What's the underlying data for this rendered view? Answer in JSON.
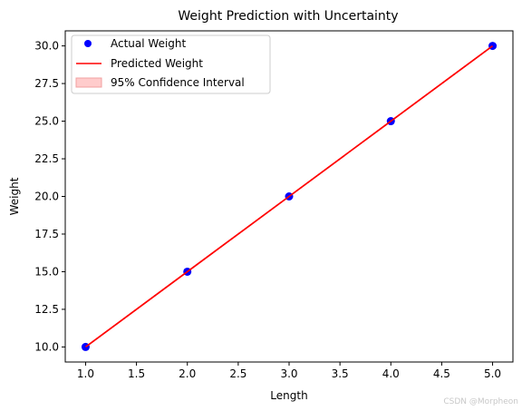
{
  "chart_data": {
    "type": "line",
    "title": "Weight Prediction with Uncertainty",
    "xlabel": "Length",
    "ylabel": "Weight",
    "xlim": [
      0.8,
      5.2
    ],
    "ylim": [
      9.0,
      31.0
    ],
    "xticks": [
      "1.0",
      "1.5",
      "2.0",
      "2.5",
      "3.0",
      "3.5",
      "4.0",
      "4.5",
      "5.0"
    ],
    "yticks": [
      "10.0",
      "12.5",
      "15.0",
      "17.5",
      "20.0",
      "22.5",
      "25.0",
      "27.5",
      "30.0"
    ],
    "grid": false,
    "legend_position": "top-left",
    "series": [
      {
        "name": "Actual Weight",
        "kind": "scatter",
        "color": "#0000ff",
        "x": [
          1,
          2,
          3,
          4,
          5
        ],
        "y": [
          10,
          15,
          20,
          25,
          30
        ]
      },
      {
        "name": "Predicted Weight",
        "kind": "line",
        "color": "#ff0000",
        "x": [
          1,
          2,
          3,
          4,
          5
        ],
        "y": [
          10,
          15,
          20,
          25,
          30
        ]
      },
      {
        "name": "95% Confidence Interval",
        "kind": "band",
        "color": "#ffcccc",
        "x": [
          1,
          2,
          3,
          4,
          5
        ],
        "lower": [
          10,
          15,
          20,
          25,
          30
        ],
        "upper": [
          10,
          15,
          20,
          25,
          30
        ]
      }
    ]
  },
  "watermark": "CSDN @Morpheon"
}
